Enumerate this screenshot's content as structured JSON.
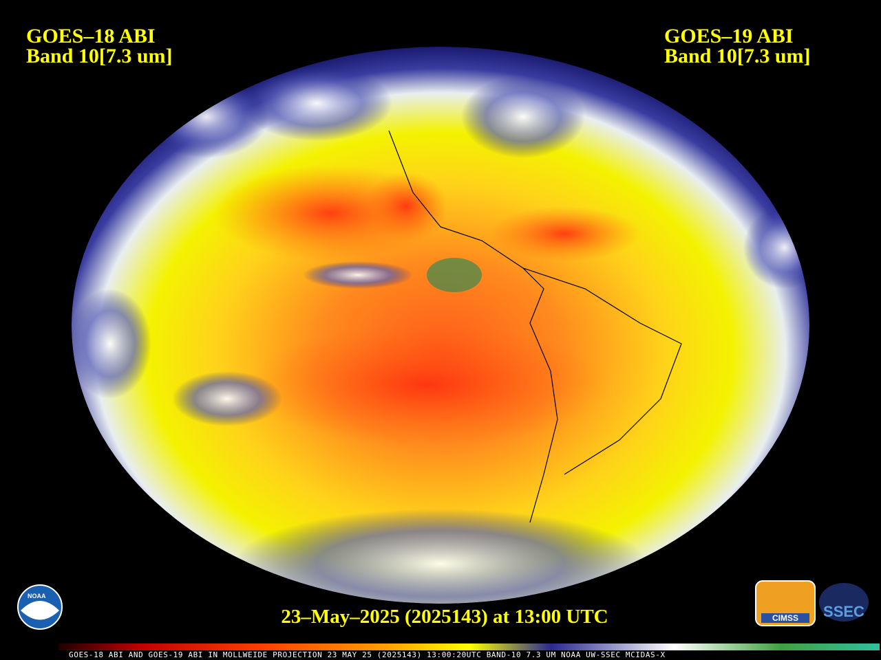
{
  "header": {
    "left": {
      "title": "GOES–18 ABI",
      "band": "Band 10[7.3 um]"
    },
    "right": {
      "title": "GOES–19 ABI",
      "band": "Band 10[7.3 um]"
    }
  },
  "footer": {
    "date": "23–May–2025 (2025143) at 13:00 UTC",
    "caption": "GOES-18 ABI AND GOES-19 ABI IN MOLLWEIDE PROJECTION 23 MAY 25 (2025143) 13:00:20UTC BAND-10 7.3 UM NOAA UW-SSEC MCIDAS-X"
  },
  "logos": {
    "noaa": "NOAA",
    "cimss": "CIMSS",
    "ssec": "SSEC"
  }
}
